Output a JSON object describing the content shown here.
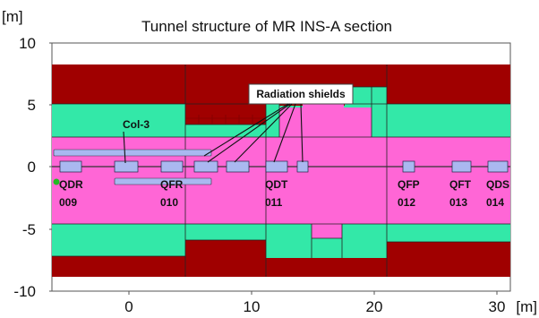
{
  "title": "Tunnel structure of MR INS-A section",
  "y_unit": "[m]",
  "x_unit": "[m]",
  "y_ticks": [
    "10",
    "5",
    "0",
    "-5",
    "-10"
  ],
  "x_ticks": [
    "0",
    "10",
    "20",
    "30"
  ],
  "colors": {
    "rock": "#a00000",
    "concrete": "#33e8a8",
    "air": "#ff66d6",
    "beam_element": "#aab8f0",
    "cell_line": "#222222",
    "beam_marker": "#22bb22"
  },
  "callouts": {
    "shields": "Radiation shields",
    "col3": "Col-3"
  },
  "magnets": [
    {
      "name": "QDR",
      "number": "009"
    },
    {
      "name": "QFR",
      "number": "010"
    },
    {
      "name": "QDT",
      "number": "011"
    },
    {
      "name": "QFP",
      "number": "012"
    },
    {
      "name": "QFT",
      "number": "013"
    },
    {
      "name": "QDS",
      "number": "014"
    }
  ]
}
